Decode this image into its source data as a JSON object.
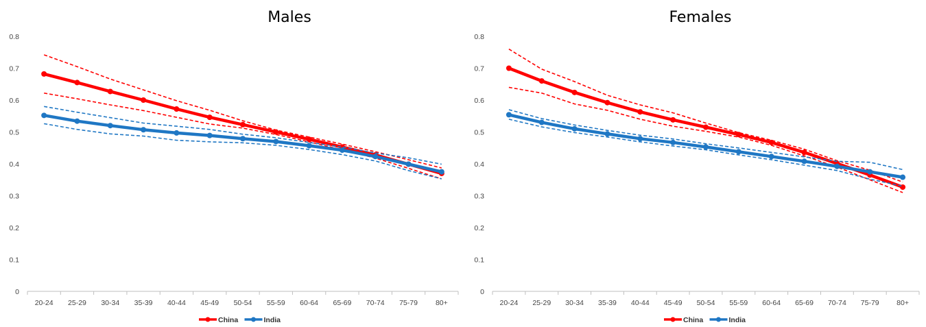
{
  "colors": {
    "china": "#ff0000",
    "india": "#1f77c4"
  },
  "chart_data": [
    {
      "type": "line",
      "title": "Males",
      "categories": [
        "20-24",
        "25-29",
        "30-34",
        "35-39",
        "40-44",
        "45-49",
        "50-54",
        "55-59",
        "60-64",
        "65-69",
        "70-74",
        "75-79",
        "80+"
      ],
      "yticks": [
        "0",
        "0.1",
        "0.2",
        "0.3",
        "0.4",
        "0.5",
        "0.6",
        "0.7",
        "0.8"
      ],
      "ylim": [
        0,
        0.8
      ],
      "legend_position": "bottom",
      "series": [
        {
          "name": "China",
          "color": "#ff0000",
          "values": [
            0.682,
            0.655,
            0.627,
            0.6,
            0.572,
            0.546,
            0.523,
            0.5,
            0.477,
            0.453,
            0.428,
            0.399,
            0.37
          ],
          "upper": [
            0.742,
            0.705,
            0.666,
            0.632,
            0.598,
            0.568,
            0.535,
            0.506,
            0.484,
            0.462,
            0.438,
            0.413,
            0.387
          ],
          "lower": [
            0.622,
            0.604,
            0.585,
            0.567,
            0.546,
            0.525,
            0.512,
            0.492,
            0.469,
            0.444,
            0.418,
            0.386,
            0.353
          ]
        },
        {
          "name": "India",
          "color": "#1f77c4",
          "values": [
            0.552,
            0.534,
            0.52,
            0.507,
            0.497,
            0.489,
            0.479,
            0.47,
            0.457,
            0.443,
            0.423,
            0.399,
            0.375
          ],
          "upper": [
            0.58,
            0.562,
            0.545,
            0.528,
            0.518,
            0.508,
            0.493,
            0.482,
            0.467,
            0.453,
            0.434,
            0.419,
            0.399
          ],
          "lower": [
            0.526,
            0.508,
            0.494,
            0.487,
            0.474,
            0.469,
            0.466,
            0.458,
            0.445,
            0.429,
            0.409,
            0.379,
            0.353
          ]
        }
      ]
    },
    {
      "type": "line",
      "title": "Females",
      "categories": [
        "20-24",
        "25-29",
        "30-34",
        "35-39",
        "40-44",
        "45-49",
        "50-54",
        "55-59",
        "60-64",
        "65-69",
        "70-74",
        "75-79",
        "80+"
      ],
      "yticks": [
        "0",
        "0.1",
        "0.2",
        "0.3",
        "0.4",
        "0.5",
        "0.6",
        "0.7",
        "0.8"
      ],
      "ylim": [
        0,
        0.8
      ],
      "legend_position": "bottom",
      "series": [
        {
          "name": "China",
          "color": "#ff0000",
          "values": [
            0.7,
            0.66,
            0.624,
            0.592,
            0.563,
            0.538,
            0.515,
            0.492,
            0.467,
            0.436,
            0.401,
            0.365,
            0.327
          ],
          "upper": [
            0.76,
            0.697,
            0.658,
            0.615,
            0.585,
            0.56,
            0.528,
            0.498,
            0.474,
            0.446,
            0.41,
            0.38,
            0.343
          ],
          "lower": [
            0.64,
            0.622,
            0.588,
            0.568,
            0.54,
            0.518,
            0.502,
            0.484,
            0.458,
            0.425,
            0.39,
            0.35,
            0.31
          ]
        },
        {
          "name": "India",
          "color": "#1f77c4",
          "values": [
            0.554,
            0.53,
            0.51,
            0.494,
            0.479,
            0.467,
            0.453,
            0.438,
            0.423,
            0.408,
            0.392,
            0.375,
            0.358
          ],
          "upper": [
            0.57,
            0.542,
            0.522,
            0.505,
            0.49,
            0.478,
            0.463,
            0.45,
            0.436,
            0.422,
            0.408,
            0.405,
            0.382
          ],
          "lower": [
            0.54,
            0.516,
            0.498,
            0.484,
            0.469,
            0.456,
            0.444,
            0.428,
            0.413,
            0.396,
            0.379,
            0.352,
            0.33
          ]
        }
      ]
    }
  ]
}
